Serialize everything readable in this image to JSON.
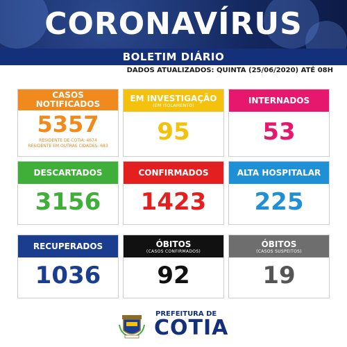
{
  "banner": {
    "title": "CORONAVÍRUS"
  },
  "subtitle": "BOLETIM DIÁRIO",
  "updated": "DADOS ATUALIZADOS: QUINTA (25/06/2020) ATÉ 08H",
  "cards": {
    "notificados": {
      "title_line1": "CASOS",
      "title_line2": "NOTIFICADOS",
      "value": "5357",
      "note1": "RESIDENTE DE COTIA: 4674",
      "note2": "RESIDENTE EM OUTRAS CIDADES: 683",
      "color": "#f08a1c",
      "value_color": "#f08a1c"
    },
    "investigacao": {
      "title": "EM INVESTIGAÇÃO",
      "subtitle": "(EM ISOLAMENTO)",
      "value": "95",
      "color": "#f4c20d",
      "value_color": "#f4c20d"
    },
    "internados": {
      "title": "INTERNADOS",
      "value": "53",
      "color": "#e6186e",
      "value_color": "#e6186e"
    },
    "descartados": {
      "title": "DESCARTADOS",
      "value": "3156",
      "color": "#3faf3a",
      "value_color": "#3faf3a"
    },
    "confirmados": {
      "title": "CONFIRMADOS",
      "value": "1423",
      "color": "#e3201f",
      "value_color": "#e3201f"
    },
    "alta": {
      "title": "ALTA HOSPITALAR",
      "value": "225",
      "color": "#1f8fd6",
      "value_color": "#1f8fd6"
    },
    "recuperados": {
      "title": "RECUPERADOS",
      "value": "1036",
      "color": "#1a3d8f",
      "value_color": "#1a3d8f"
    },
    "obitos_confirmados": {
      "title": "ÓBITOS",
      "subtitle": "(CASOS CONFIRMADOS)",
      "value": "92",
      "color": "#111111",
      "value_color": "#111111"
    },
    "obitos_suspeitos": {
      "title": "ÓBITOS",
      "subtitle": "(CASOS SUSPEITOS)",
      "value": "19",
      "color": "#6e6e6e",
      "value_color": "#555555"
    }
  },
  "footer": {
    "prefeitura": "PREFEITURA DE",
    "city": "COTIA",
    "crest_icon": "coat-of-arms-icon"
  }
}
